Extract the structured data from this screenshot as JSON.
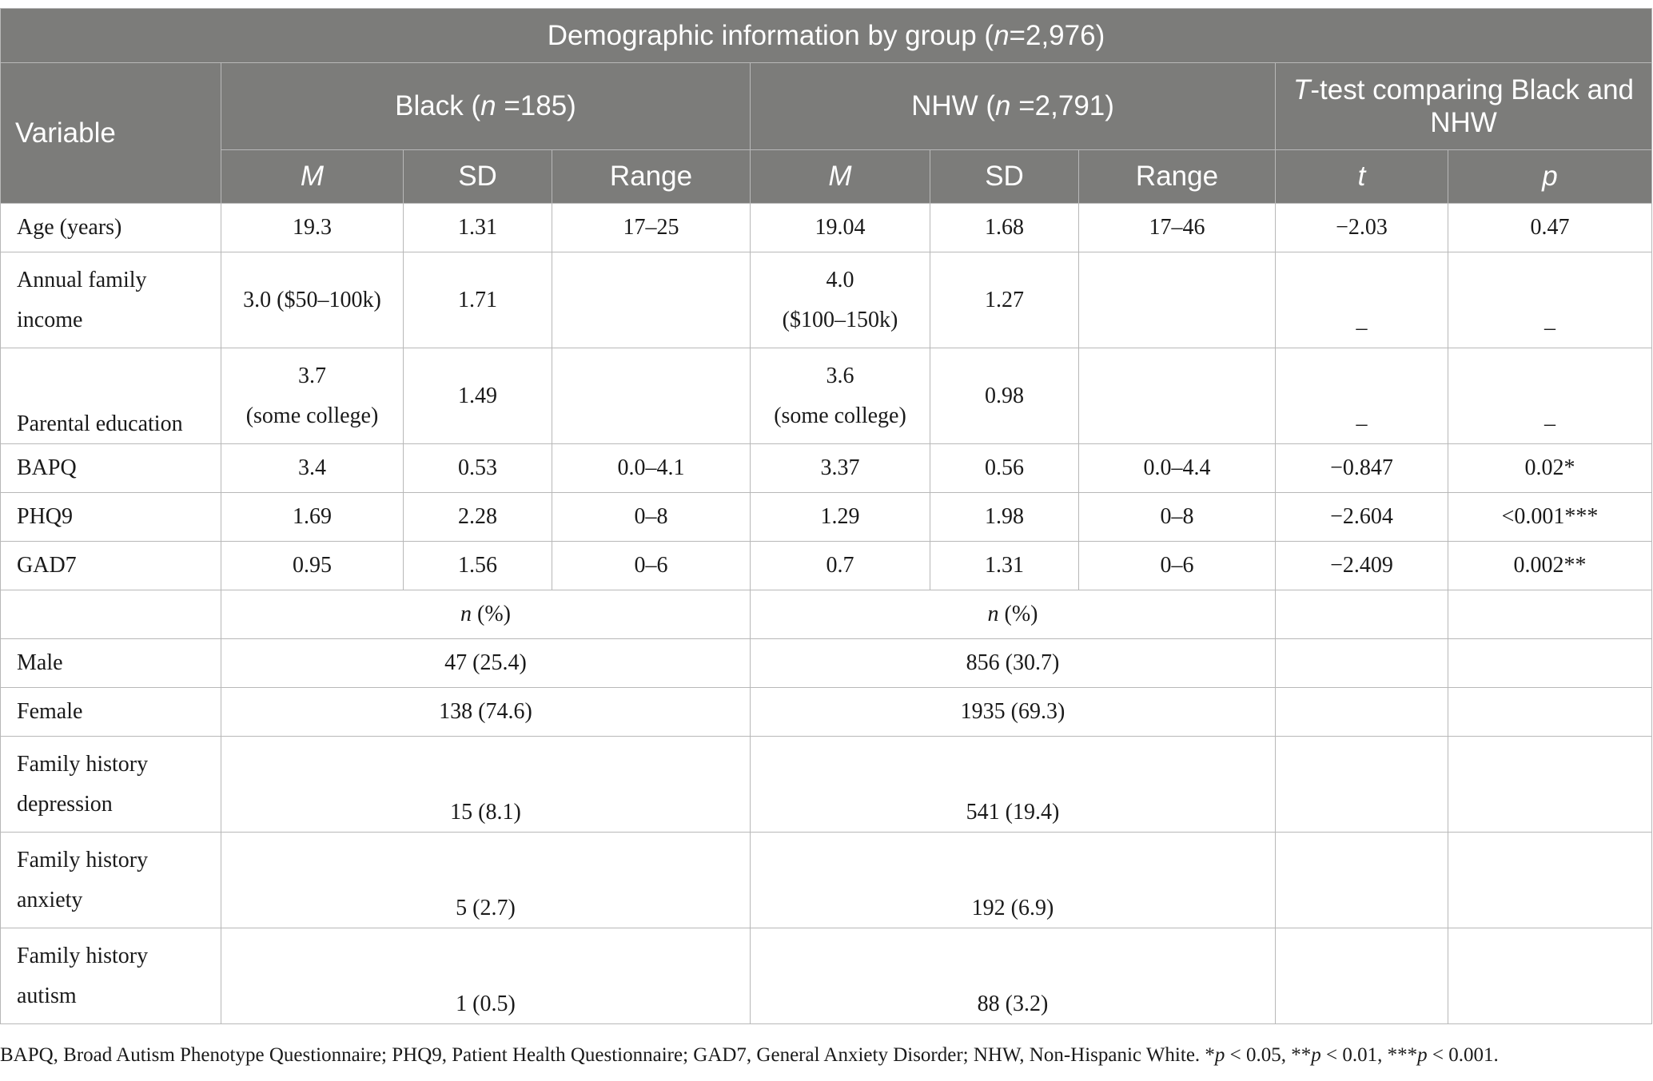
{
  "title": {
    "pre": "Demographic information by group (",
    "n": "n",
    "post": "=2,976)"
  },
  "header": {
    "variable": "Variable",
    "black": {
      "pre": "Black (",
      "n": "n",
      "post": " =185)"
    },
    "nhw": {
      "pre": "NHW (",
      "n": "n",
      "post": " =2,791)"
    },
    "ttest": {
      "t": "T",
      "post": "-test comparing Black and NHW"
    },
    "sub": {
      "m": "M",
      "sd": "SD",
      "range": "Range",
      "t": "t",
      "p": "p"
    }
  },
  "rows": {
    "age": {
      "label": "Age (years)",
      "bm": "19.3",
      "bsd": "1.31",
      "br": "17–25",
      "nm": "19.04",
      "nsd": "1.68",
      "nr": "17–46",
      "t": "−2.03",
      "p": "0.47"
    },
    "income": {
      "label1": "Annual family",
      "label2": "income",
      "bm": "3.0 ($50–100k)",
      "bsd": "1.71",
      "br": "",
      "nm1": "4.0",
      "nm2": "($100–150k)",
      "nsd": "1.27",
      "nr": "",
      "t": "–",
      "p": "–"
    },
    "parent": {
      "label": "Parental education",
      "bm1": "3.7",
      "bm2": "(some college)",
      "bsd": "1.49",
      "br": "",
      "nm1": "3.6",
      "nm2": "(some college)",
      "nsd": "0.98",
      "nr": "",
      "t": "–",
      "p": "–"
    },
    "bapq": {
      "label": "BAPQ",
      "bm": "3.4",
      "bsd": "0.53",
      "br": "0.0–4.1",
      "nm": "3.37",
      "nsd": "0.56",
      "nr": "0.0–4.4",
      "t": "−0.847",
      "p": "0.02*"
    },
    "phq9": {
      "label": "PHQ9",
      "bm": "1.69",
      "bsd": "2.28",
      "br": "0–8",
      "nm": "1.29",
      "nsd": "1.98",
      "nr": "0–8",
      "t": "−2.604",
      "p": "<0.001***"
    },
    "gad7": {
      "label": "GAD7",
      "bm": "0.95",
      "bsd": "1.56",
      "br": "0–6",
      "nm": "0.7",
      "nsd": "1.31",
      "nr": "0–6",
      "t": "−2.409",
      "p": "0.002**"
    },
    "npct": {
      "n": "n",
      "pct": " (%)"
    },
    "male": {
      "label": "Male",
      "b": "47 (25.4)",
      "n": "856 (30.7)"
    },
    "female": {
      "label": "Female",
      "b": "138 (74.6)",
      "n": "1935 (69.3)"
    },
    "fhdep": {
      "label1": "Family history",
      "label2": "depression",
      "b": "15 (8.1)",
      "n": "541 (19.4)"
    },
    "fhanx": {
      "label1": "Family history",
      "label2": "anxiety",
      "b": "5 (2.7)",
      "n": "192 (6.9)"
    },
    "fhaut": {
      "label1": "Family history",
      "label2": "autism",
      "b": "1 (0.5)",
      "n": "88 (3.2)"
    }
  },
  "footnote": {
    "text": "BAPQ, Broad Autism Phenotype Questionnaire; PHQ9, Patient Health Questionnaire; GAD7, General Anxiety Disorder; NHW, Non-Hispanic White. *",
    "p1": "p",
    "t1": " < 0.05, **",
    "p2": "p",
    "t2": " < 0.01, ***",
    "p3": "p",
    "t3": " < 0.001."
  }
}
